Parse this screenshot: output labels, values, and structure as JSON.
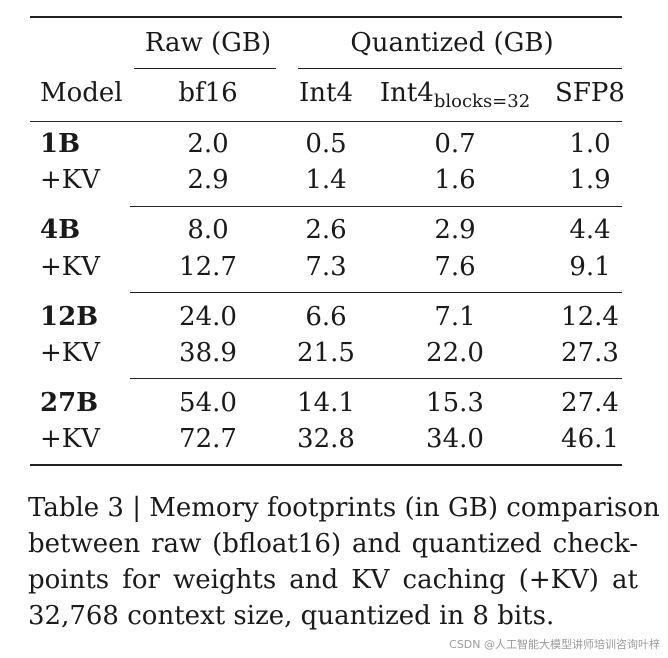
{
  "table": {
    "group_headers": {
      "raw": "Raw (GB)",
      "quantized": "Quantized (GB)"
    },
    "columns": [
      "Model",
      "bf16",
      "Int4",
      "Int4",
      "SFP8"
    ],
    "int4_block_subscript": "blocks=32",
    "groups": [
      {
        "model": "1B",
        "kv": "+KV",
        "model_values": [
          "2.0",
          "0.5",
          "0.7",
          "1.0"
        ],
        "kv_values": [
          "2.9",
          "1.4",
          "1.6",
          "1.9"
        ]
      },
      {
        "model": "4B",
        "kv": "+KV",
        "model_values": [
          "8.0",
          "2.6",
          "2.9",
          "4.4"
        ],
        "kv_values": [
          "12.7",
          "7.3",
          "7.6",
          "9.1"
        ]
      },
      {
        "model": "12B",
        "kv": "+KV",
        "model_values": [
          "24.0",
          "6.6",
          "7.1",
          "12.4"
        ],
        "kv_values": [
          "38.9",
          "21.5",
          "22.0",
          "27.3"
        ]
      },
      {
        "model": "27B",
        "kv": "+KV",
        "model_values": [
          "54.0",
          "14.1",
          "15.3",
          "27.4"
        ],
        "kv_values": [
          "72.7",
          "32.8",
          "34.0",
          "46.1"
        ]
      }
    ]
  },
  "caption": {
    "lines": [
      "Table 3 | Memory footprints (in GB) comparison",
      "between raw (bfloat16) and quantized check-",
      "points for weights and KV caching (+KV) at",
      "32,768 context size, quantized in 8 bits."
    ]
  },
  "watermark": "CSDN @人工智能大模型讲师培训咨询叶梓"
}
